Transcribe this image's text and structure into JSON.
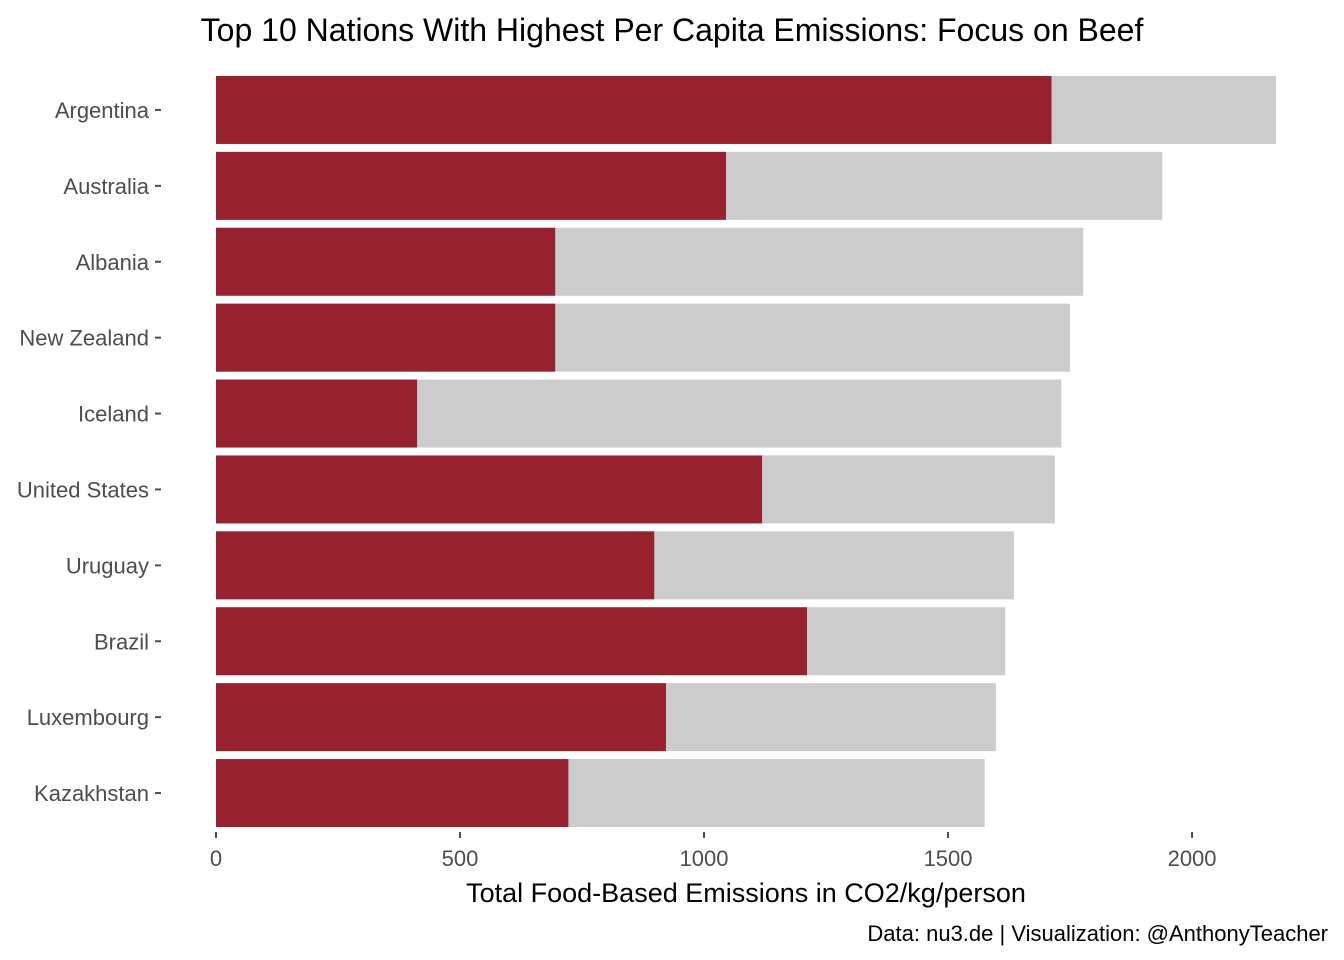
{
  "chart_data": {
    "type": "bar",
    "orientation": "horizontal",
    "title": "Top 10 Nations With Highest Per Capita Emissions: Focus on Beef",
    "xlabel": "Total Food-Based Emissions in CO2/kg/person",
    "ylabel": "",
    "caption": "Data: nu3.de | Visualization: @AnthonyTeacher",
    "categories": [
      "Argentina",
      "Australia",
      "Albania",
      "New Zealand",
      "Iceland",
      "United States",
      "Uruguay",
      "Brazil",
      "Luxembourg",
      "Kazakhstan"
    ],
    "series": [
      {
        "role": "total",
        "color": "#cccccc",
        "values": [
          2172,
          1939,
          1777,
          1750,
          1732,
          1719,
          1635,
          1617,
          1598,
          1575
        ]
      },
      {
        "role": "beef",
        "color": "#98212f",
        "values": [
          1712,
          1045,
          695,
          695,
          412,
          1119,
          898,
          1211,
          922,
          722
        ]
      }
    ],
    "xticks": [
      0,
      500,
      1000,
      1500,
      2000
    ],
    "xtick_labels": [
      "0",
      "500",
      "1000",
      "1500",
      "2000"
    ],
    "xlim": [
      0,
      2172
    ],
    "grid": false,
    "legend": "none"
  }
}
